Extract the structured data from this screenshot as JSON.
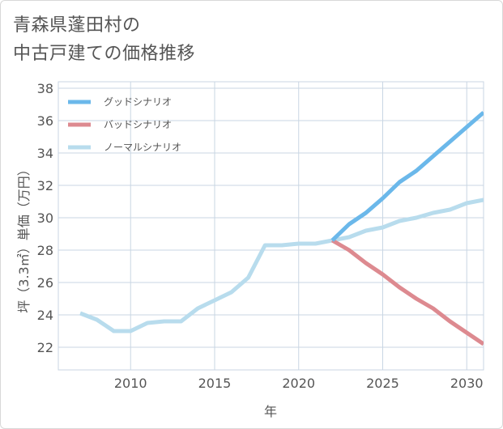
{
  "title_line1": "青森県蓬田村の",
  "title_line2": "中古戸建ての価格推移",
  "chart_data": {
    "type": "line",
    "title": "青森県蓬田村の中古戸建ての価格推移",
    "xlabel": "年",
    "ylabel": "坪（3.3㎡）単価（万円）",
    "xlim": [
      2005.7,
      2031
    ],
    "ylim": [
      20.6,
      38.4
    ],
    "xticks": [
      2010,
      2015,
      2020,
      2025,
      2030
    ],
    "yticks": [
      22,
      24,
      26,
      28,
      30,
      32,
      34,
      36,
      38
    ],
    "grid": true,
    "legend_position": "top-left",
    "series": [
      {
        "name": "グッドシナリオ",
        "color": "#6bb8ea",
        "x": [
          2022,
          2023,
          2024,
          2025,
          2026,
          2027,
          2028,
          2029,
          2030,
          2031
        ],
        "y": [
          28.6,
          29.6,
          30.3,
          31.2,
          32.2,
          32.9,
          33.8,
          34.7,
          35.6,
          36.5
        ]
      },
      {
        "name": "バッドシナリオ",
        "color": "#dd8a90",
        "x": [
          2022,
          2023,
          2024,
          2025,
          2026,
          2027,
          2028,
          2029,
          2030,
          2031
        ],
        "y": [
          28.6,
          28.0,
          27.2,
          26.5,
          25.7,
          25.0,
          24.4,
          23.6,
          22.9,
          22.2
        ]
      },
      {
        "name": "ノーマルシナリオ",
        "color": "#b8dced",
        "x": [
          2007,
          2008,
          2009,
          2010,
          2011,
          2012,
          2013,
          2014,
          2015,
          2016,
          2017,
          2018,
          2019,
          2020,
          2021,
          2022,
          2023,
          2024,
          2025,
          2026,
          2027,
          2028,
          2029,
          2030,
          2031
        ],
        "y": [
          24.1,
          23.7,
          23.0,
          23.0,
          23.5,
          23.6,
          23.6,
          24.4,
          24.9,
          25.4,
          26.3,
          28.3,
          28.3,
          28.4,
          28.4,
          28.6,
          28.8,
          29.2,
          29.4,
          29.8,
          30.0,
          30.3,
          30.5,
          30.9,
          31.1
        ]
      }
    ]
  }
}
